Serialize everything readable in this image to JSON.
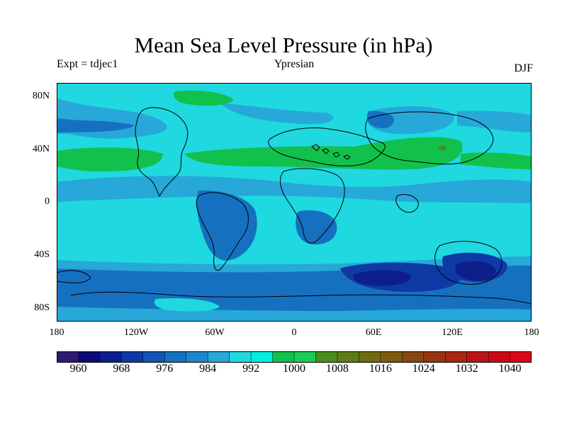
{
  "title": "Mean Sea Level Pressure (in hPa)",
  "subtitle_left": "Expt = tdjec1",
  "subtitle_center": "Ypresian",
  "subtitle_right": "DJF",
  "lat_labels": [
    "80N",
    "40N",
    "0",
    "40S",
    "80S"
  ],
  "lon_labels": [
    "180",
    "120W",
    "60W",
    "0",
    "60E",
    "120E",
    "180"
  ],
  "colorbar": {
    "labels": [
      "960",
      "968",
      "976",
      "984",
      "992",
      "1000",
      "1008",
      "1016",
      "1024",
      "1032",
      "1040"
    ],
    "colors": [
      "#2e1a6e",
      "#0c0c78",
      "#0e1f8c",
      "#0e3aa5",
      "#1355b4",
      "#1670c0",
      "#1e86c8",
      "#27a8d8",
      "#1fd8e0",
      "#00eedd",
      "#12c04c",
      "#18cc5a",
      "#4a8c1e",
      "#5e7c14",
      "#6e6c12",
      "#7c5a0e",
      "#884810",
      "#943410",
      "#a82612",
      "#bb1418",
      "#cc0a14",
      "#dc0616"
    ]
  },
  "colors": {
    "band_984": "#1670c0",
    "band_992": "#27a8d8",
    "band_1000": "#1fd8e0",
    "band_1008": "#12c04c",
    "band_1016": "#4a8c1e",
    "band_976": "#0e3aa5",
    "band_968": "#0c0c78",
    "coast": "#000000"
  },
  "chart_data": {
    "type": "heatmap",
    "title": "Mean Sea Level Pressure (in hPa)",
    "units": "hPa",
    "season": "DJF",
    "experiment": "tdjec1",
    "period": "Ypresian",
    "xlim": [
      -180,
      180
    ],
    "ylim": [
      -90,
      90
    ],
    "levels": [
      960,
      964,
      968,
      972,
      976,
      980,
      984,
      988,
      992,
      996,
      1000,
      1004,
      1008,
      1012,
      1016,
      1020,
      1024,
      1028,
      1032,
      1036,
      1040,
      1044
    ],
    "approx_zonal_profile": [
      {
        "lat": 85,
        "value": 1000
      },
      {
        "lat": 75,
        "value": 992
      },
      {
        "lat": 62,
        "value": 988
      },
      {
        "lat": 45,
        "value": 1000
      },
      {
        "lat": 30,
        "value": 1008
      },
      {
        "lat": 15,
        "value": 1000
      },
      {
        "lat": 0,
        "value": 996
      },
      {
        "lat": -15,
        "value": 992
      },
      {
        "lat": -25,
        "value": 1000
      },
      {
        "lat": -35,
        "value": 996
      },
      {
        "lat": -45,
        "value": 992
      },
      {
        "lat": -55,
        "value": 984
      },
      {
        "lat": -62,
        "value": 980
      },
      {
        "lat": -70,
        "value": 984
      },
      {
        "lat": -82,
        "value": 992
      }
    ]
  }
}
